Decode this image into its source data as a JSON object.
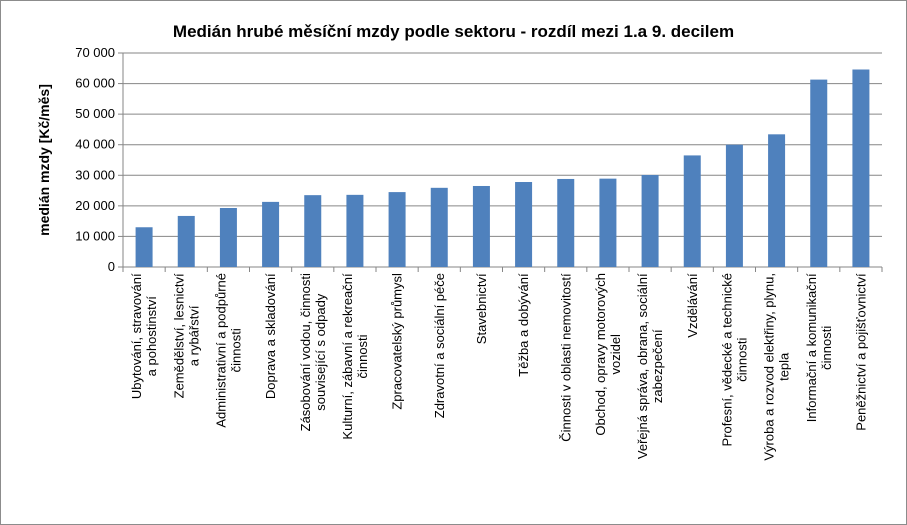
{
  "chart_data": {
    "type": "bar",
    "title": "Medián hrubé měsíční mzdy podle sektoru - rozdíl mezi 1.a 9. decilem",
    "ylabel": "medián mzdy [Kč/měs]",
    "xlabel": "",
    "ylim": [
      0,
      70000
    ],
    "y_ticks": [
      0,
      10000,
      20000,
      30000,
      40000,
      50000,
      60000,
      70000
    ],
    "y_tick_labels": [
      "0",
      "10 000",
      "20 000",
      "30 000",
      "40 000",
      "50 000",
      "60 000",
      "70 000"
    ],
    "grid": true,
    "legend": "none",
    "bar_color": "#4F81BD",
    "categories": [
      "Ubytování, stravování a pohostinství",
      "Zemědělství, lesnictví a rybářství",
      "Administrativní a podpůrné činnosti",
      "Doprava a skladování",
      "Zásobování vodou, činnosti související s odpady",
      "Kulturní, zábavní a rekreační činnosti",
      "Zpracovatelský průmysl",
      "Zdravotní a sociální péče",
      "Stavebnictví",
      "Těžba a dobývání",
      "Činnosti v oblasti nemovitostí",
      "Obchod, opravy motorových vozidel",
      "Veřejná správa, obrana, sociální zabezpečení",
      "Vzdělávání",
      "Profesní, vědecké a technické činnosti",
      "Výroba a rozvod elektřiny, plynu, tepla",
      "Informační a komunikační činnosti",
      "Peněžnictví a pojišťovnictví"
    ],
    "category_label_lines": [
      [
        "Ubytování, stravování",
        "a pohostinství"
      ],
      [
        "Zemědělství, lesnictví",
        "a rybářství"
      ],
      [
        "Administrativní a podpůrné",
        "činnosti"
      ],
      [
        "Doprava a skladování"
      ],
      [
        "Zásobování vodou, činnosti",
        "související s odpady"
      ],
      [
        "Kulturní, zábavní a rekreační",
        "činnosti"
      ],
      [
        "Zpracovatelský průmysl"
      ],
      [
        "Zdravotní a sociální péče"
      ],
      [
        "Stavebnictví"
      ],
      [
        "Těžba a dobývání"
      ],
      [
        "Činnosti v oblasti nemovitostí"
      ],
      [
        "Obchod, opravy motorových",
        "vozidel"
      ],
      [
        "Veřejná správa, obrana, sociální",
        "zabezpečení"
      ],
      [
        "Vzdělávání"
      ],
      [
        "Profesní, vědecké a technické",
        "činnosti"
      ],
      [
        "Výroba a rozvod elektřiny, plynu,",
        "tepla"
      ],
      [
        "Informační a komunikační",
        "činnosti"
      ],
      [
        "Peněžnictví a pojišťovnictví"
      ]
    ],
    "values": [
      13000,
      16700,
      19300,
      21300,
      23500,
      23600,
      24500,
      25900,
      26500,
      27800,
      28800,
      28900,
      30100,
      36500,
      40000,
      43400,
      61300,
      64600
    ]
  }
}
